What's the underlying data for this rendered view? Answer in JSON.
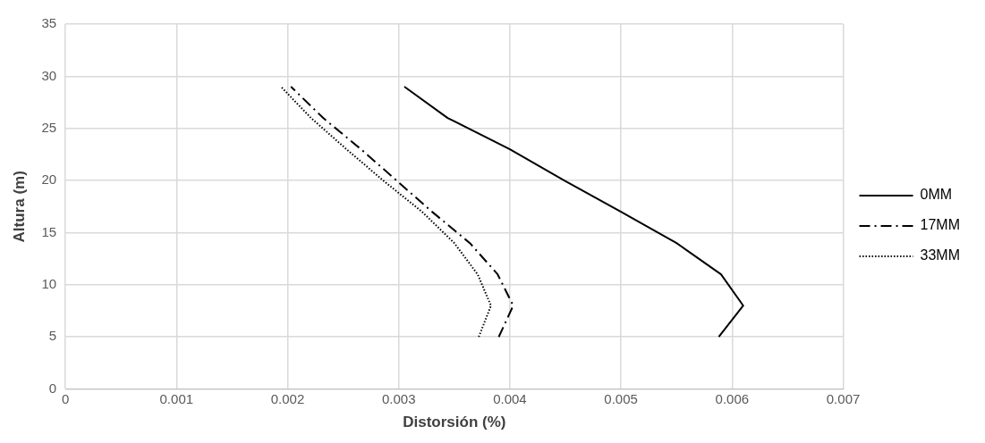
{
  "chart_data": {
    "type": "line",
    "xlabel": "Distorsión (%)",
    "ylabel": "Altura (m)",
    "xlim": [
      0,
      0.007
    ],
    "xticks": [
      0,
      0.001,
      0.002,
      0.003,
      0.004,
      0.005,
      0.006,
      0.007
    ],
    "ylim": [
      0,
      35
    ],
    "yticks": [
      0,
      5,
      10,
      15,
      20,
      25,
      30,
      35
    ],
    "grid": true,
    "legend": "right",
    "marker": "none",
    "series": [
      {
        "name": "0MM",
        "color": "#000000",
        "line_style": "solid",
        "x": [
          0.00588,
          0.0061,
          0.0059,
          0.0055,
          0.005,
          0.00449,
          0.004,
          0.00344,
          0.00305
        ],
        "values": [
          5,
          8,
          11,
          14,
          17,
          20,
          23,
          26,
          29
        ]
      },
      {
        "name": "17MM",
        "color": "#000000",
        "line_style": "dashed",
        "x": [
          0.0039,
          0.00403,
          0.00389,
          0.00364,
          0.0033,
          0.00298,
          0.00266,
          0.00232,
          0.00203
        ],
        "values": [
          5,
          8,
          11,
          14,
          17,
          20,
          23,
          26,
          29
        ]
      },
      {
        "name": "33MM",
        "color": "#000000",
        "line_style": "dotted",
        "x": [
          0.00372,
          0.00383,
          0.00371,
          0.0035,
          0.00321,
          0.00286,
          0.00253,
          0.00221,
          0.00194
        ],
        "values": [
          5,
          8,
          11,
          14,
          17,
          20,
          23,
          26,
          29
        ]
      }
    ]
  }
}
